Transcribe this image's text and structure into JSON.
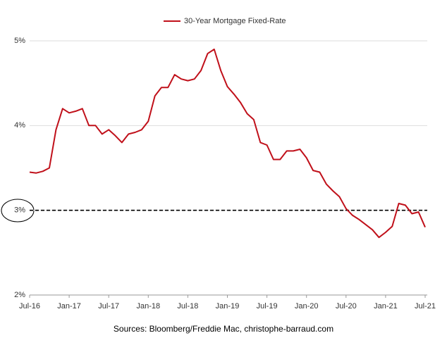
{
  "chart_data": {
    "type": "line",
    "series": [
      {
        "name": "30-Year Mortgage Fixed-Rate",
        "color": "#c0101a",
        "values": [
          3.45,
          3.44,
          3.46,
          3.5,
          3.95,
          4.2,
          4.15,
          4.17,
          4.2,
          4.0,
          4.0,
          3.9,
          3.95,
          3.88,
          3.8,
          3.9,
          3.92,
          3.95,
          4.05,
          4.35,
          4.45,
          4.45,
          4.6,
          4.55,
          4.53,
          4.55,
          4.65,
          4.85,
          4.9,
          4.65,
          4.46,
          4.37,
          4.27,
          4.14,
          4.07,
          3.8,
          3.77,
          3.6,
          3.6,
          3.7,
          3.7,
          3.72,
          3.62,
          3.47,
          3.45,
          3.31,
          3.23,
          3.16,
          3.02,
          2.94,
          2.89,
          2.83,
          2.77,
          2.68,
          2.74,
          2.81,
          3.08,
          3.06,
          2.96,
          2.98,
          2.8
        ]
      }
    ],
    "x": [
      "2016-07",
      "2016-08",
      "2016-09",
      "2016-10",
      "2016-11",
      "2016-12",
      "2017-01",
      "2017-02",
      "2017-03",
      "2017-04",
      "2017-05",
      "2017-06",
      "2017-07",
      "2017-08",
      "2017-09",
      "2017-10",
      "2017-11",
      "2017-12",
      "2018-01",
      "2018-02",
      "2018-03",
      "2018-04",
      "2018-05",
      "2018-06",
      "2018-07",
      "2018-08",
      "2018-09",
      "2018-10",
      "2018-11",
      "2018-12",
      "2019-01",
      "2019-02",
      "2019-03",
      "2019-04",
      "2019-05",
      "2019-06",
      "2019-07",
      "2019-08",
      "2019-09",
      "2019-10",
      "2019-11",
      "2019-12",
      "2020-01",
      "2020-02",
      "2020-03",
      "2020-04",
      "2020-05",
      "2020-06",
      "2020-07",
      "2020-08",
      "2020-09",
      "2020-10",
      "2020-11",
      "2020-12",
      "2021-01",
      "2021-02",
      "2021-03",
      "2021-04",
      "2021-05",
      "2021-06",
      "2021-07"
    ],
    "xlim": [
      "2016-07",
      "2021-07"
    ],
    "xticks": [
      {
        "value": "2016-07",
        "label": "Jul-16"
      },
      {
        "value": "2017-01",
        "label": "Jan-17"
      },
      {
        "value": "2017-07",
        "label": "Jul-17"
      },
      {
        "value": "2018-01",
        "label": "Jan-18"
      },
      {
        "value": "2018-07",
        "label": "Jul-18"
      },
      {
        "value": "2019-01",
        "label": "Jan-19"
      },
      {
        "value": "2019-07",
        "label": "Jul-19"
      },
      {
        "value": "2020-01",
        "label": "Jan-20"
      },
      {
        "value": "2020-07",
        "label": "Jul-20"
      },
      {
        "value": "2021-01",
        "label": "Jan-21"
      },
      {
        "value": "2021-07",
        "label": "Jul-21"
      }
    ],
    "ylim": [
      2,
      5
    ],
    "yticks": [
      {
        "value": 2,
        "label": "2%"
      },
      {
        "value": 3,
        "label": "3%"
      },
      {
        "value": 4,
        "label": "4%"
      },
      {
        "value": 5,
        "label": "5%"
      }
    ],
    "grid": true,
    "reference_line": 3,
    "source": "Sources: Bloomberg/Freddie Mac, christophe-barraud.com"
  }
}
